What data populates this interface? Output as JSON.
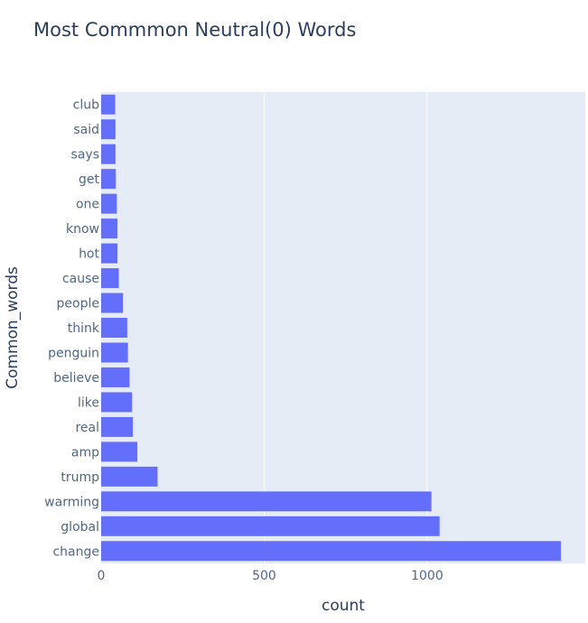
{
  "chart_data": {
    "type": "bar",
    "orientation": "horizontal",
    "title": "Most Commmon Neutral(0) Words",
    "xlabel": "count",
    "ylabel": "Common_words",
    "categories": [
      "club",
      "said",
      "says",
      "get",
      "one",
      "know",
      "hot",
      "cause",
      "people",
      "think",
      "penguin",
      "believe",
      "like",
      "real",
      "amp",
      "trump",
      "warming",
      "global",
      "change"
    ],
    "values": [
      43,
      44,
      44,
      45,
      48,
      50,
      50,
      54,
      67,
      80,
      82,
      87,
      95,
      97,
      111,
      173,
      1013,
      1038,
      1410
    ],
    "xlim": [
      0,
      1485
    ],
    "xticks": [
      0,
      500,
      1000
    ],
    "grid": true,
    "colors": {
      "bar": "#636efa",
      "plot_bg": "#e5ecf6",
      "grid": "#ffffff",
      "text": "#2a3f5f",
      "axis_text": "#506784"
    }
  }
}
